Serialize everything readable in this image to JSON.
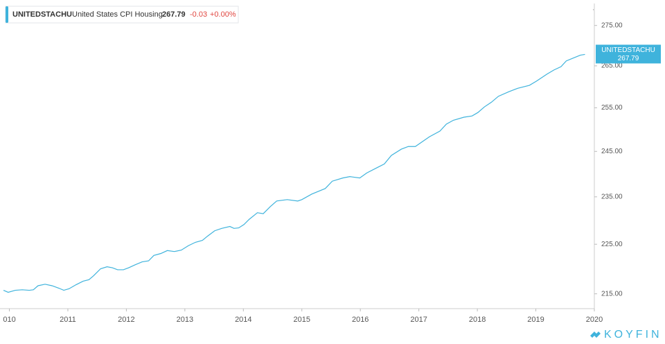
{
  "chart_data": {
    "type": "line",
    "title": "United States CPI Housing",
    "change": -0.03,
    "change_pct": "+0.00%",
    "log_scale": true,
    "grid": false,
    "brand": "KOYFIN",
    "x": [
      2009.9,
      2009.98,
      2010.1,
      2010.22,
      2010.34,
      2010.41,
      2010.49,
      2010.61,
      2010.73,
      2010.85,
      2010.93,
      2011.02,
      2011.14,
      2011.26,
      2011.36,
      2011.44,
      2011.56,
      2011.67,
      2011.76,
      2011.85,
      2011.95,
      2012.04,
      2012.15,
      2012.27,
      2012.38,
      2012.47,
      2012.59,
      2012.7,
      2012.82,
      2012.94,
      2013.06,
      2013.18,
      2013.3,
      2013.39,
      2013.51,
      2013.63,
      2013.77,
      2013.84,
      2013.92,
      2014.01,
      2014.1,
      2014.24,
      2014.34,
      2014.46,
      2014.57,
      2014.75,
      2014.93,
      2015.0,
      2015.17,
      2015.4,
      2015.52,
      2015.7,
      2015.82,
      2015.99,
      2016.11,
      2016.29,
      2016.41,
      2016.53,
      2016.7,
      2016.82,
      2016.94,
      2017.06,
      2017.18,
      2017.36,
      2017.47,
      2017.59,
      2017.77,
      2017.91,
      2018.01,
      2018.12,
      2018.24,
      2018.36,
      2018.54,
      2018.69,
      2018.89,
      2019.01,
      2019.19,
      2019.31,
      2019.43,
      2019.52,
      2019.64,
      2019.76,
      2019.84
    ],
    "series": [
      {
        "name": "UNITEDSTACHU",
        "color": "#3fb3dc",
        "values": [
          215.7,
          215.3,
          215.7,
          215.8,
          215.7,
          215.8,
          216.6,
          216.9,
          216.6,
          216.1,
          215.7,
          216.0,
          216.8,
          217.5,
          217.8,
          218.6,
          220.0,
          220.4,
          220.2,
          219.8,
          219.8,
          220.2,
          220.8,
          221.4,
          221.6,
          222.7,
          223.1,
          223.7,
          223.5,
          223.8,
          224.7,
          225.4,
          225.8,
          226.7,
          227.8,
          228.3,
          228.7,
          228.3,
          228.4,
          229.1,
          230.2,
          231.6,
          231.4,
          232.9,
          234.1,
          234.4,
          234.1,
          234.4,
          235.6,
          236.8,
          238.4,
          239.1,
          239.4,
          239.1,
          240.2,
          241.4,
          242.2,
          244.1,
          245.5,
          246.1,
          246.1,
          247.2,
          248.3,
          249.6,
          251.2,
          252.1,
          252.8,
          253.1,
          253.9,
          255.2,
          256.3,
          257.7,
          258.8,
          259.6,
          260.3,
          261.3,
          263.0,
          264.0,
          264.8,
          266.2,
          266.9,
          267.6,
          267.79
        ]
      }
    ],
    "xlim": [
      2009.84,
      2020.0
    ],
    "xticks": [
      {
        "value": 2010,
        "label": "010"
      },
      2011,
      2012,
      2013,
      2014,
      2015,
      2016,
      2017,
      2018,
      2019,
      2020
    ],
    "ylim": [
      212.1,
      280.6
    ],
    "yticks": [
      {
        "value": 215,
        "label": "215.00"
      },
      {
        "value": 225,
        "label": "225.00"
      },
      {
        "value": 235,
        "label": "235.00"
      },
      {
        "value": 245,
        "label": "245.00"
      },
      {
        "value": 255,
        "label": "255.00"
      },
      {
        "value": 265,
        "label": "265.00"
      },
      {
        "value": 275,
        "label": "275.00"
      }
    ]
  }
}
